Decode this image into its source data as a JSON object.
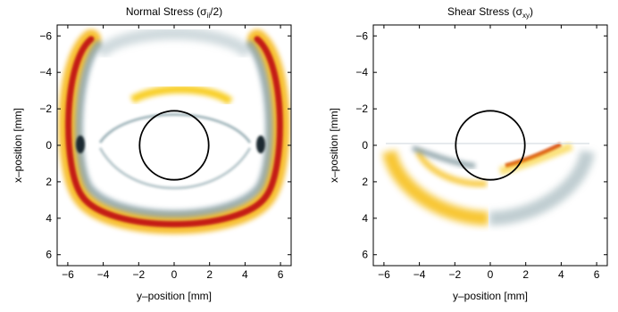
{
  "chart_data": [
    {
      "type": "heatmap",
      "title_main": "Normal Stress (σ",
      "title_sub": "ii",
      "title_tail": "/2)",
      "xlabel": "y–position [mm]",
      "ylabel": "x–position [mm]",
      "xlim": [
        -6.6,
        6.6
      ],
      "ylim": [
        6.6,
        -6.6
      ],
      "x_ticks": [
        "−6",
        "−4",
        "−2",
        "0",
        "2",
        "4",
        "6"
      ],
      "y_ticks": [
        "−6",
        "−4",
        "−2",
        "0",
        "2",
        "4",
        "6"
      ],
      "x_tick_values": [
        -6,
        -4,
        -2,
        0,
        2,
        4,
        6
      ],
      "y_tick_values": [
        -6,
        -4,
        -2,
        0,
        2,
        4,
        6
      ],
      "inclusion_circle": {
        "center": [
          0,
          0
        ],
        "radius": 1.95
      },
      "colormap": {
        "positive": "#f3a400",
        "strong_positive": "#c41a12",
        "negative": "#7f9aa2"
      }
    },
    {
      "type": "heatmap",
      "title_main": "Shear Stress (σ",
      "title_sub": "xy",
      "title_tail": ")",
      "xlabel": "y–position [mm]",
      "ylabel": "x–position [mm]",
      "xlim": [
        -6.6,
        6.6
      ],
      "ylim": [
        6.6,
        -6.6
      ],
      "x_ticks": [
        "−6",
        "−4",
        "−2",
        "0",
        "2",
        "4",
        "6"
      ],
      "y_ticks": [
        "−6",
        "−4",
        "−2",
        "0",
        "2",
        "4",
        "6"
      ],
      "x_tick_values": [
        -6,
        -4,
        -2,
        0,
        2,
        4,
        6
      ],
      "y_tick_values": [
        -6,
        -4,
        -2,
        0,
        2,
        4,
        6
      ],
      "inclusion_circle": {
        "center": [
          0,
          0
        ],
        "radius": 1.95
      },
      "colormap": {
        "positive": "#f3a400",
        "strong_positive": "#c41a12",
        "negative": "#7f9aa2"
      }
    }
  ]
}
